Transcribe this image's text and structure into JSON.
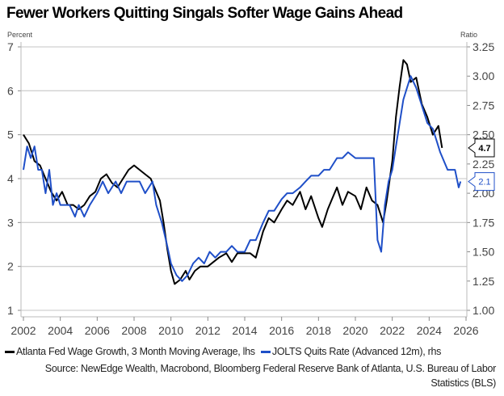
{
  "chart_data": {
    "type": "line",
    "title": "Fewer Workers Quitting Singals Softer Wage Gains Ahead",
    "left_axis": {
      "label": "Percent",
      "range": [
        1,
        7
      ],
      "ticks": [
        1,
        2,
        3,
        4,
        5,
        6,
        7
      ]
    },
    "right_axis": {
      "label": "Ratio",
      "range": [
        1.0,
        3.25
      ],
      "ticks": [
        "1.00",
        "1.25",
        "1.50",
        "1.75",
        "2.00",
        "2.25",
        "2.50",
        "2.75",
        "3.00",
        "3.25"
      ]
    },
    "x_axis": {
      "range": [
        2002,
        2026
      ],
      "ticks": [
        "2002",
        "2004",
        "2006",
        "2008",
        "2010",
        "2012",
        "2014",
        "2016",
        "2018",
        "2020",
        "2022",
        "2024",
        "2026"
      ]
    },
    "grid": true,
    "series": [
      {
        "name": "Atlanta Fed Wage Growth, 3 Month Moving Average, lhs",
        "axis": "left",
        "color": "#000000",
        "last_label": "4.7",
        "points": [
          [
            2002.0,
            5.0
          ],
          [
            2002.3,
            4.8
          ],
          [
            2002.6,
            4.4
          ],
          [
            2002.9,
            4.3
          ],
          [
            2003.2,
            4.0
          ],
          [
            2003.5,
            3.7
          ],
          [
            2003.8,
            3.5
          ],
          [
            2004.1,
            3.7
          ],
          [
            2004.4,
            3.4
          ],
          [
            2004.7,
            3.4
          ],
          [
            2005.0,
            3.3
          ],
          [
            2005.3,
            3.4
          ],
          [
            2005.6,
            3.6
          ],
          [
            2005.9,
            3.7
          ],
          [
            2006.2,
            4.0
          ],
          [
            2006.5,
            4.1
          ],
          [
            2006.8,
            3.9
          ],
          [
            2007.1,
            3.8
          ],
          [
            2007.4,
            4.0
          ],
          [
            2007.7,
            4.2
          ],
          [
            2008.0,
            4.3
          ],
          [
            2008.3,
            4.2
          ],
          [
            2008.6,
            4.1
          ],
          [
            2008.9,
            4.0
          ],
          [
            2009.1,
            3.8
          ],
          [
            2009.4,
            3.5
          ],
          [
            2009.6,
            3.0
          ],
          [
            2009.8,
            2.4
          ],
          [
            2010.0,
            1.9
          ],
          [
            2010.2,
            1.6
          ],
          [
            2010.5,
            1.7
          ],
          [
            2010.8,
            1.9
          ],
          [
            2011.0,
            1.7
          ],
          [
            2011.3,
            1.9
          ],
          [
            2011.6,
            2.0
          ],
          [
            2012.0,
            2.0
          ],
          [
            2012.3,
            2.1
          ],
          [
            2012.6,
            2.2
          ],
          [
            2013.0,
            2.3
          ],
          [
            2013.3,
            2.1
          ],
          [
            2013.6,
            2.3
          ],
          [
            2014.0,
            2.3
          ],
          [
            2014.3,
            2.3
          ],
          [
            2014.6,
            2.2
          ],
          [
            2015.0,
            2.8
          ],
          [
            2015.3,
            3.1
          ],
          [
            2015.6,
            3.0
          ],
          [
            2016.0,
            3.3
          ],
          [
            2016.3,
            3.5
          ],
          [
            2016.6,
            3.4
          ],
          [
            2017.0,
            3.7
          ],
          [
            2017.3,
            3.3
          ],
          [
            2017.6,
            3.6
          ],
          [
            2018.0,
            3.1
          ],
          [
            2018.2,
            2.9
          ],
          [
            2018.5,
            3.3
          ],
          [
            2018.8,
            3.6
          ],
          [
            2019.0,
            3.8
          ],
          [
            2019.3,
            3.4
          ],
          [
            2019.6,
            3.7
          ],
          [
            2020.0,
            3.6
          ],
          [
            2020.3,
            3.3
          ],
          [
            2020.6,
            3.8
          ],
          [
            2020.9,
            3.5
          ],
          [
            2021.2,
            3.4
          ],
          [
            2021.5,
            3.0
          ],
          [
            2021.7,
            3.5
          ],
          [
            2022.0,
            4.4
          ],
          [
            2022.2,
            5.4
          ],
          [
            2022.4,
            6.1
          ],
          [
            2022.6,
            6.7
          ],
          [
            2022.8,
            6.6
          ],
          [
            2023.0,
            6.2
          ],
          [
            2023.3,
            6.3
          ],
          [
            2023.6,
            5.7
          ],
          [
            2023.9,
            5.4
          ],
          [
            2024.2,
            5.0
          ],
          [
            2024.5,
            5.2
          ],
          [
            2024.7,
            4.7
          ]
        ]
      },
      {
        "name": "JOLTS Quits Rate (Advanced 12m), rhs",
        "axis": "right",
        "color": "#1F4FC8",
        "last_label": "2.1",
        "points": [
          [
            2002.0,
            2.2
          ],
          [
            2002.2,
            2.4
          ],
          [
            2002.4,
            2.3
          ],
          [
            2002.6,
            2.4
          ],
          [
            2002.8,
            2.2
          ],
          [
            2003.0,
            2.2
          ],
          [
            2003.2,
            2.0
          ],
          [
            2003.4,
            2.2
          ],
          [
            2003.6,
            1.9
          ],
          [
            2003.8,
            2.0
          ],
          [
            2004.0,
            1.9
          ],
          [
            2004.2,
            1.9
          ],
          [
            2004.5,
            1.9
          ],
          [
            2004.8,
            1.8
          ],
          [
            2005.0,
            1.9
          ],
          [
            2005.3,
            1.8
          ],
          [
            2005.6,
            1.9
          ],
          [
            2006.0,
            2.0
          ],
          [
            2006.3,
            2.1
          ],
          [
            2006.6,
            2.0
          ],
          [
            2007.0,
            2.1
          ],
          [
            2007.3,
            2.0
          ],
          [
            2007.6,
            2.1
          ],
          [
            2008.0,
            2.1
          ],
          [
            2008.3,
            2.1
          ],
          [
            2008.6,
            2.0
          ],
          [
            2009.0,
            2.1
          ],
          [
            2009.2,
            1.9
          ],
          [
            2009.5,
            1.75
          ],
          [
            2009.8,
            1.55
          ],
          [
            2010.0,
            1.4
          ],
          [
            2010.3,
            1.3
          ],
          [
            2010.6,
            1.25
          ],
          [
            2010.9,
            1.3
          ],
          [
            2011.2,
            1.4
          ],
          [
            2011.5,
            1.45
          ],
          [
            2011.8,
            1.4
          ],
          [
            2012.1,
            1.5
          ],
          [
            2012.4,
            1.45
          ],
          [
            2012.7,
            1.5
          ],
          [
            2013.0,
            1.5
          ],
          [
            2013.3,
            1.55
          ],
          [
            2013.6,
            1.5
          ],
          [
            2014.0,
            1.5
          ],
          [
            2014.3,
            1.6
          ],
          [
            2014.6,
            1.6
          ],
          [
            2015.0,
            1.75
          ],
          [
            2015.3,
            1.85
          ],
          [
            2015.6,
            1.85
          ],
          [
            2016.0,
            1.95
          ],
          [
            2016.3,
            2.0
          ],
          [
            2016.6,
            2.0
          ],
          [
            2017.0,
            2.05
          ],
          [
            2017.3,
            2.1
          ],
          [
            2017.6,
            2.15
          ],
          [
            2018.0,
            2.15
          ],
          [
            2018.3,
            2.2
          ],
          [
            2018.6,
            2.2
          ],
          [
            2019.0,
            2.3
          ],
          [
            2019.3,
            2.3
          ],
          [
            2019.6,
            2.35
          ],
          [
            2020.0,
            2.3
          ],
          [
            2020.5,
            2.3
          ],
          [
            2021.0,
            2.3
          ],
          [
            2021.2,
            1.6
          ],
          [
            2021.4,
            1.5
          ],
          [
            2021.6,
            1.9
          ],
          [
            2021.8,
            2.1
          ],
          [
            2022.0,
            2.2
          ],
          [
            2022.2,
            2.4
          ],
          [
            2022.4,
            2.6
          ],
          [
            2022.6,
            2.8
          ],
          [
            2022.8,
            2.9
          ],
          [
            2023.0,
            3.0
          ],
          [
            2023.3,
            2.9
          ],
          [
            2023.6,
            2.75
          ],
          [
            2023.9,
            2.6
          ],
          [
            2024.2,
            2.55
          ],
          [
            2024.4,
            2.45
          ],
          [
            2024.6,
            2.35
          ],
          [
            2025.0,
            2.2
          ],
          [
            2025.4,
            2.2
          ],
          [
            2025.6,
            2.05
          ],
          [
            2025.7,
            2.1
          ]
        ]
      }
    ]
  },
  "legend": {
    "item1": "Atlanta Fed Wage Growth, 3 Month Moving Average, lhs",
    "item2": "JOLTS Quits Rate (Advanced 12m), rhs"
  },
  "source": "Source: NewEdge Wealth, Macrobond, Bloomberg Federal Reserve Bank of Atlanta, U.S. Bureau of Labor Statistics (BLS)"
}
